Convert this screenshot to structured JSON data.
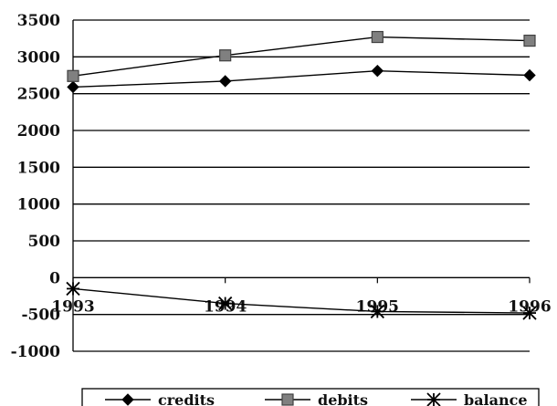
{
  "chart_data": {
    "type": "line",
    "title": "",
    "xlabel": "",
    "ylabel": "",
    "categories": [
      "1993",
      "1994",
      "1995",
      "1996"
    ],
    "ylim": [
      -1000,
      3500
    ],
    "yticks": [
      3500,
      3000,
      2500,
      2000,
      1500,
      1000,
      500,
      0,
      -500,
      -1000
    ],
    "ytick_labels": [
      "3500",
      "3000",
      "2500",
      "2000",
      "1500",
      "1000",
      "500",
      "0",
      "-500",
      "-1000"
    ],
    "grid": "horizontal",
    "legend_position": "bottom",
    "series": [
      {
        "name": "credits",
        "marker": "diamond",
        "color": "#000000",
        "values": [
          2590,
          2670,
          2810,
          2750
        ]
      },
      {
        "name": "debits",
        "marker": "square",
        "color": "#808080",
        "values": [
          2740,
          3020,
          3270,
          3220
        ]
      },
      {
        "name": "balance",
        "marker": "star",
        "color": "#000000",
        "values": [
          -150,
          -350,
          -460,
          -480
        ]
      }
    ]
  }
}
